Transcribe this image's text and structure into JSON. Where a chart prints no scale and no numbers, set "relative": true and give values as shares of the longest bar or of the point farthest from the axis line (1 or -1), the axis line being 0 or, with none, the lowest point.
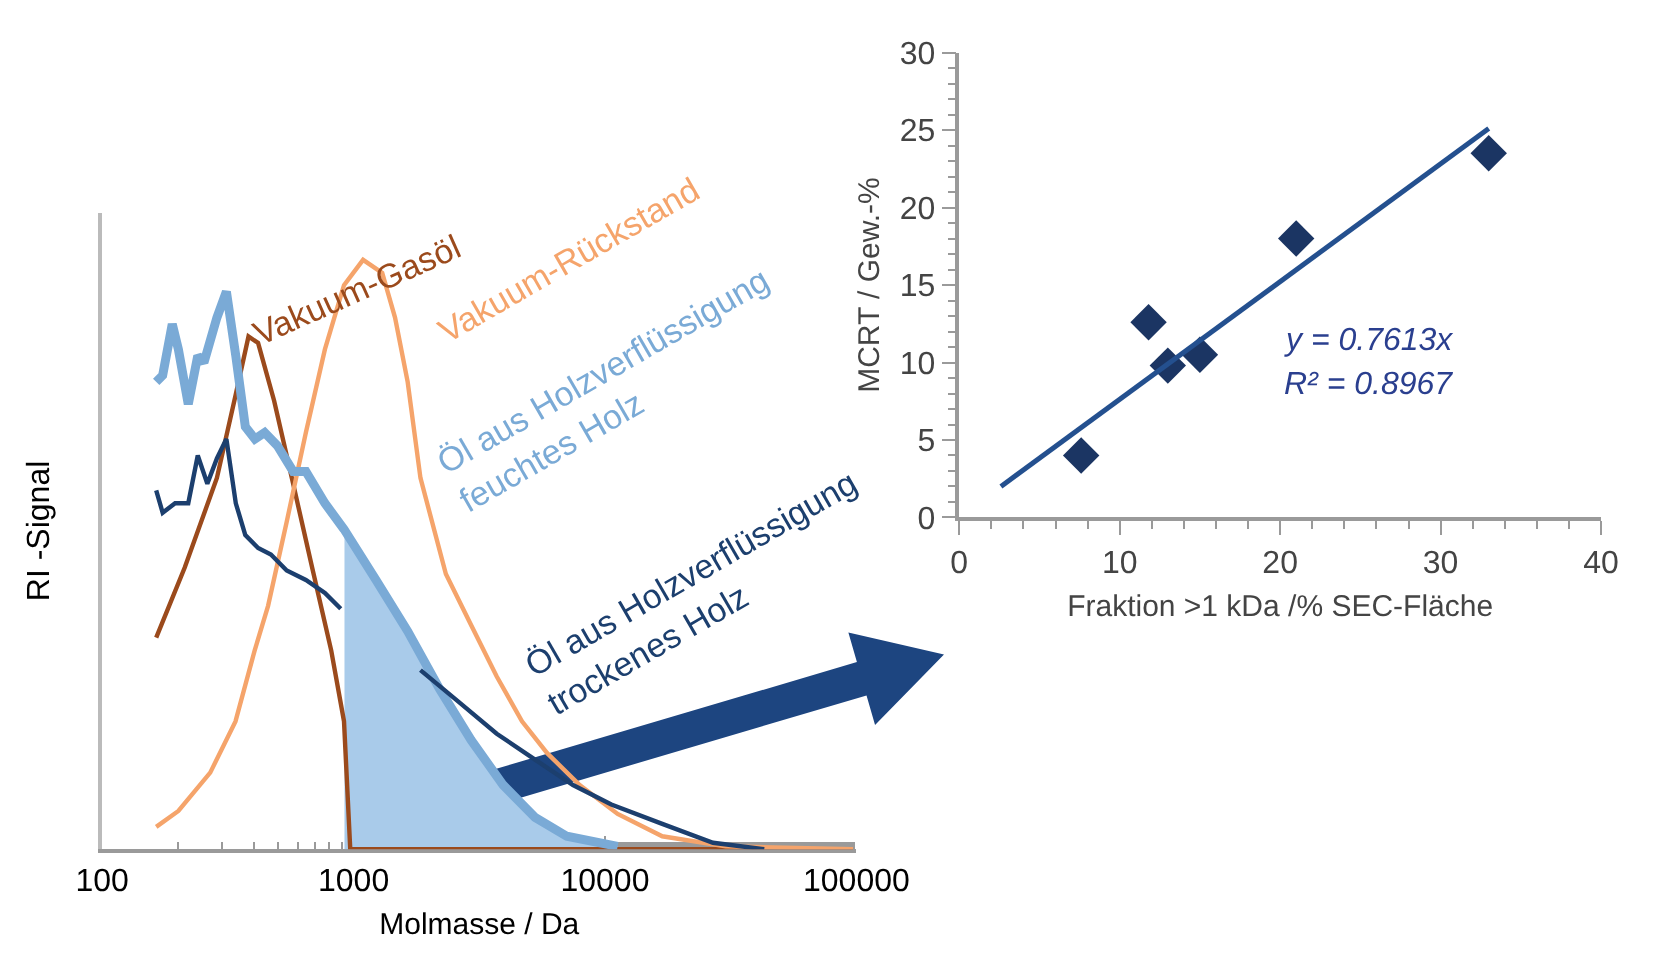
{
  "chart_data": [
    {
      "type": "line",
      "relative": true,
      "xlabel": "Molmasse / Da",
      "ylabel": "RI -Signal",
      "log": "x",
      "xlim": [
        100,
        100000
      ],
      "xticks": [
        100,
        1000,
        10000,
        100000
      ],
      "tick_labels": "x",
      "series": [
        {
          "type": "area",
          "color": "#a9cbea",
          "x": [
            920,
            1227,
            1641,
            2198,
            2937,
            3934,
            5270,
            7050,
            11230
          ],
          "values": [
            0.543,
            0.457,
            0.37,
            0.272,
            0.185,
            0.109,
            0.054,
            0.022,
            0.005
          ]
        },
        {
          "name": "Vakuum-Gasöl",
          "color": "#9b4a1c",
          "x": [
            164,
            213,
            286,
            340,
            382,
            417,
            483,
            575,
            684,
            815,
            916,
            970,
            97000
          ],
          "values": [
            0.359,
            0.478,
            0.63,
            0.772,
            0.87,
            0.859,
            0.761,
            0.62,
            0.478,
            0.337,
            0.217,
            0,
            0
          ]
        },
        {
          "name": "Vakuum-Rückstand",
          "color": "#f5a46b",
          "x": [
            164,
            201,
            269,
            339,
            404,
            457,
            541,
            646,
            769,
            916,
            1091,
            1300,
            1462,
            1641,
            1845,
            2329,
            2937,
            3711,
            4676,
            5890,
            7930,
            11230,
            16900,
            30200,
            97000
          ],
          "values": [
            0.038,
            0.065,
            0.13,
            0.217,
            0.337,
            0.413,
            0.554,
            0.707,
            0.848,
            0.957,
            1,
            0.978,
            0.902,
            0.793,
            0.63,
            0.467,
            0.38,
            0.293,
            0.217,
            0.163,
            0.109,
            0.06,
            0.022,
            0.005,
            0
          ]
        },
        {
          "name": "Öl aus Holzverflüssigung\nfeuchtes Holz",
          "color": "#7aaad6",
          "x": [
            164,
            174,
            190,
            201,
            220,
            240,
            254,
            286,
            312,
            340,
            371,
            405,
            443,
            497,
            575,
            646,
            769,
            916,
            1227,
            1641,
            2198,
            2937,
            3934,
            5270,
            7050,
            11230
          ],
          "values": [
            0.793,
            0.804,
            0.891,
            0.848,
            0.755,
            0.837,
            0.826,
            0.902,
            0.946,
            0.837,
            0.717,
            0.696,
            0.707,
            0.685,
            0.641,
            0.641,
            0.587,
            0.543,
            0.457,
            0.37,
            0.272,
            0.185,
            0.109,
            0.054,
            0.022,
            0.005
          ]
        },
        {
          "name": "Öl aus Holzverflüssigung\ntrockenes Holz",
          "color": "#1c3f6e",
          "x": [
            164,
            174,
            195,
            220,
            240,
            262,
            286,
            312,
            340,
            371,
            417,
            469,
            542,
            646,
            769,
            889,
            1300,
            1845,
            2618,
            3711,
            5270,
            7460,
            10600,
            16900,
            26900,
            43000
          ],
          "values": [
            0.609,
            0.571,
            0.587,
            0.587,
            0.668,
            0.62,
            0.663,
            0.696,
            0.587,
            0.533,
            0.511,
            0.5,
            0.473,
            0.457,
            0.435,
            0.408,
            null,
            0.304,
            0.25,
            0.196,
            0.152,
            0.109,
            0.076,
            0.043,
            0.011,
            0
          ]
        }
      ]
    },
    {
      "type": "scatter",
      "xlabel": "Fraktion >1 kDa /% SEC-Fläche",
      "ylabel": "MCRT / Gew.-%",
      "xlim": [
        0,
        40
      ],
      "ylim": [
        0,
        30
      ],
      "xticks": [
        0,
        10,
        20,
        30,
        40
      ],
      "yticks": [
        0,
        5,
        10,
        15,
        20,
        25,
        30
      ],
      "annotations": [
        "y = 0.7613x",
        "R² = 0.8967"
      ],
      "series": [
        {
          "type": "scatter",
          "marker": "diamond",
          "color": "#1b3563",
          "x": [
            7.6,
            11.8,
            13,
            15,
            21,
            33
          ],
          "values": [
            4.0,
            12.6,
            9.8,
            10.5,
            18,
            23.5
          ]
        },
        {
          "type": "line",
          "color": "#24508f",
          "x": [
            2.6,
            33
          ],
          "values": [
            2.0,
            25.1
          ]
        }
      ]
    }
  ]
}
